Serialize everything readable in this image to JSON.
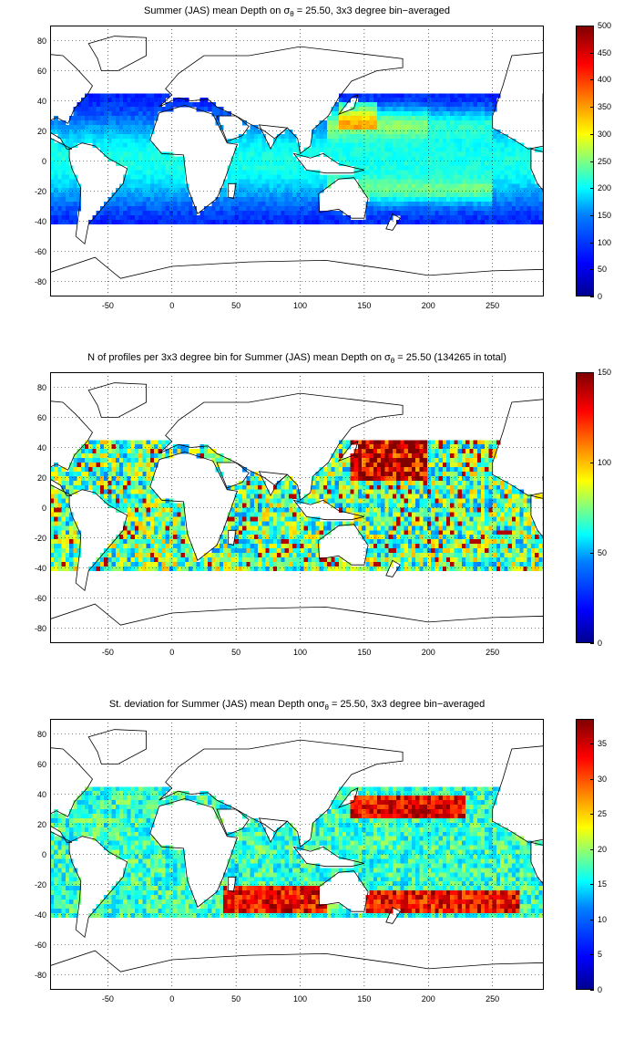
{
  "colors": {
    "land": "#ffffff",
    "coast": "#000000",
    "grid": "#000000"
  },
  "axes": {
    "x_ticks": [
      "-50",
      "0",
      "50",
      "100",
      "150",
      "200",
      "250"
    ],
    "x_values": [
      -50,
      0,
      50,
      100,
      150,
      200,
      250
    ],
    "y_ticks": [
      "80",
      "60",
      "40",
      "20",
      "0",
      "-20",
      "-40",
      "-60",
      "-80"
    ],
    "y_values": [
      80,
      60,
      40,
      20,
      0,
      -20,
      -40,
      -60,
      -80
    ],
    "xlim": [
      -95,
      290
    ],
    "ylim": [
      -90,
      90
    ],
    "grid": "dotted"
  },
  "panels": [
    {
      "title_pre": "Summer (JAS) mean Depth on σ",
      "title_sub": "θ",
      "title_post": " = 25.50, 3x3 degree bin−averaged",
      "colorbar": {
        "ticks": [
          "500",
          "450",
          "400",
          "350",
          "300",
          "250",
          "200",
          "150",
          "100",
          "50",
          "0"
        ],
        "values": [
          500,
          450,
          400,
          350,
          300,
          250,
          200,
          150,
          100,
          50,
          0
        ],
        "range": [
          0,
          500
        ]
      }
    },
    {
      "title_pre": "N of profiles per 3x3 degree bin for Summer (JAS) mean Depth on σ",
      "title_sub": "θ",
      "title_post": " = 25.50 (134265 in total)",
      "colorbar": {
        "ticks": [
          "150",
          "100",
          "50",
          "0"
        ],
        "values": [
          150,
          100,
          50,
          0
        ],
        "range": [
          0,
          150
        ]
      }
    },
    {
      "title_pre": "St. deviation for Summer (JAS) mean Depth onσ",
      "title_sub": "θ",
      "title_post": " = 25.50, 3x3 degree bin−averaged",
      "colorbar": {
        "ticks": [
          "35",
          "30",
          "25",
          "20",
          "15",
          "10",
          "5",
          "0"
        ],
        "values": [
          35,
          30,
          25,
          20,
          15,
          10,
          5,
          0
        ],
        "range": [
          0,
          38.5
        ]
      }
    }
  ]
}
